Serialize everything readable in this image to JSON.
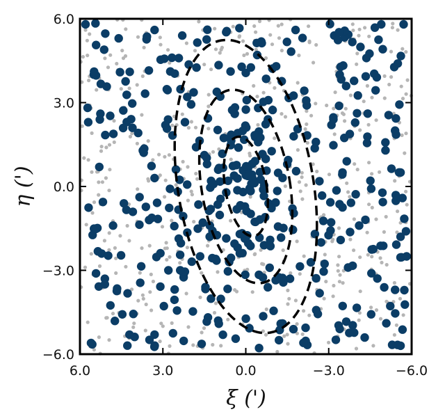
{
  "chart_data": {
    "type": "scatter",
    "title": "",
    "xlabel": "ξ (')",
    "ylabel": "η (')",
    "xlim": [
      6.0,
      -6.0
    ],
    "ylim": [
      -6.0,
      6.0
    ],
    "x_ticks": [
      "6.0",
      "3.0",
      "0.0",
      "−3.0",
      "−6.0"
    ],
    "y_ticks": [
      "6.0",
      "3.0",
      "0.0",
      "−3.0",
      "−6.0"
    ],
    "x_tick_values": [
      6.0,
      3.0,
      0.0,
      -3.0,
      -6.0
    ],
    "y_tick_values": [
      6.0,
      3.0,
      0.0,
      -3.0,
      -6.0
    ],
    "grid": false,
    "legend": "none",
    "colors": {
      "members": "#0b3d66",
      "field": "#b5b5b5",
      "contours": "#000000",
      "frame": "#000000"
    },
    "series": [
      {
        "role": "field",
        "marker": "small-dot",
        "approx_count": 520,
        "distribution": "uniform over plot area",
        "sample_points": [
          [
            5.8,
            5.6
          ],
          [
            4.9,
            4.7
          ],
          [
            3.6,
            5.5
          ],
          [
            1.7,
            5.9
          ],
          [
            0.1,
            5.2
          ],
          [
            -1.3,
            5.8
          ],
          [
            -3.6,
            5.2
          ],
          [
            -5.5,
            5.6
          ],
          [
            5.6,
            2.8
          ],
          [
            4.2,
            3.3
          ],
          [
            2.5,
            2.2
          ],
          [
            -2.2,
            2.7
          ],
          [
            -4.4,
            3.6
          ],
          [
            -5.8,
            1.9
          ],
          [
            5.2,
            -0.6
          ],
          [
            3.1,
            0.4
          ],
          [
            -1.8,
            -0.9
          ],
          [
            -3.7,
            -0.2
          ],
          [
            -5.6,
            -1.3
          ],
          [
            4.7,
            -3.1
          ],
          [
            2.3,
            -2.6
          ],
          [
            0.4,
            -3.7
          ],
          [
            -2.9,
            -3.4
          ],
          [
            -5.1,
            -2.8
          ],
          [
            5.5,
            -5.6
          ],
          [
            3.0,
            -5.0
          ],
          [
            0.9,
            -5.7
          ],
          [
            -1.5,
            -5.3
          ],
          [
            -4.0,
            -5.8
          ],
          [
            -5.7,
            -4.6
          ]
        ]
      },
      {
        "role": "members",
        "marker": "large-dot",
        "approx_count": 460,
        "distribution": "approximately uniform, mild concentration near (0, 0)",
        "sample_points": [
          [
            5.8,
            5.8
          ],
          [
            4.6,
            5.3
          ],
          [
            3.3,
            5.6
          ],
          [
            2.3,
            5.4
          ],
          [
            -1.8,
            5.6
          ],
          [
            -3.2,
            5.4
          ],
          [
            -4.9,
            5.8
          ],
          [
            5.5,
            4.0
          ],
          [
            4.2,
            4.1
          ],
          [
            -1.1,
            4.3
          ],
          [
            -3.4,
            4.0
          ],
          [
            -5.5,
            4.4
          ],
          [
            5.7,
            2.3
          ],
          [
            4.1,
            2.1
          ],
          [
            2.2,
            2.3
          ],
          [
            0.4,
            2.6
          ],
          [
            -0.8,
            2.4
          ],
          [
            -3.1,
            2.2
          ],
          [
            -5.4,
            2.0
          ],
          [
            5.3,
            0.7
          ],
          [
            3.3,
            0.3
          ],
          [
            1.0,
            0.6
          ],
          [
            0.0,
            0.4
          ],
          [
            -0.2,
            0.1
          ],
          [
            0.1,
            -0.2
          ],
          [
            -1.5,
            0.8
          ],
          [
            -3.5,
            0.5
          ],
          [
            -5.6,
            0.5
          ],
          [
            5.4,
            -1.5
          ],
          [
            3.5,
            -1.2
          ],
          [
            1.3,
            -1.4
          ],
          [
            -0.7,
            -1.1
          ],
          [
            -2.5,
            -1.7
          ],
          [
            -4.1,
            -1.4
          ],
          [
            -5.6,
            -1.8
          ],
          [
            5.1,
            -3.3
          ],
          [
            2.8,
            -3.0
          ],
          [
            0.6,
            -2.7
          ],
          [
            -1.6,
            -3.3
          ],
          [
            -3.7,
            -2.9
          ],
          [
            -5.4,
            -3.7
          ],
          [
            5.6,
            -5.6
          ],
          [
            3.3,
            -5.3
          ],
          [
            1.0,
            -4.8
          ],
          [
            -1.2,
            -5.5
          ],
          [
            -3.4,
            -5.1
          ],
          [
            -5.6,
            -5.7
          ]
        ]
      }
    ],
    "contours": [
      {
        "center": [
          0.0,
          0.0
        ],
        "semi_major": 1.8,
        "semi_minor": 0.75,
        "orientation": "tilted, major axis leaning from lower-left to upper-right",
        "style": "dashed"
      },
      {
        "center": [
          0.0,
          0.0
        ],
        "semi_major": 3.5,
        "semi_minor": 1.6,
        "orientation": "tilted, major axis leaning from lower-left to upper-right",
        "style": "dashed"
      },
      {
        "center": [
          0.0,
          0.0
        ],
        "semi_major": 5.3,
        "semi_minor": 2.45,
        "orientation": "tilted, major axis leaning from lower-left to upper-right",
        "style": "dashed"
      }
    ]
  }
}
